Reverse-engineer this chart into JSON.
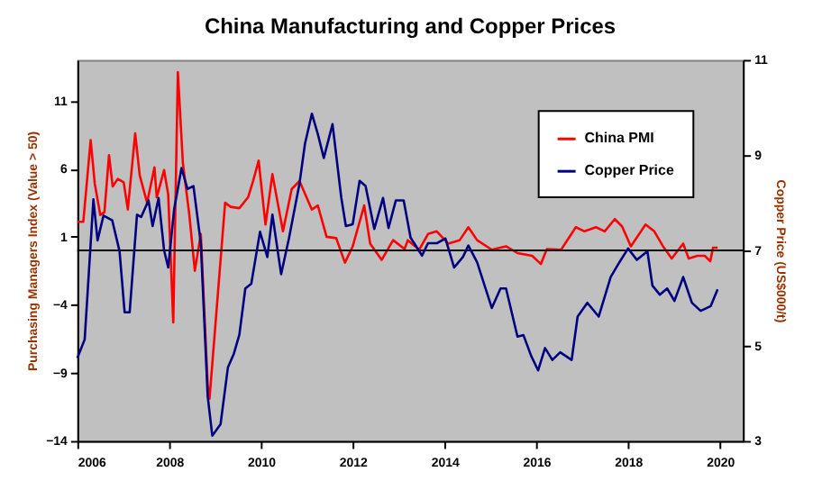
{
  "chart_data": {
    "type": "line",
    "title": "China Manufacturing and Copper Prices",
    "ylabel": "Purchasing Managers Index (Value > 50)",
    "y2label": "Copper Price (US$000/t)",
    "xlim": [
      2006,
      2020.5
    ],
    "xticks": [
      2006,
      2008,
      2010,
      2012,
      2014,
      2016,
      2018,
      2020
    ],
    "ylim": [
      -14,
      14
    ],
    "yticks": [
      -14,
      -9,
      -4,
      1,
      6,
      11
    ],
    "y2lim": [
      3,
      11
    ],
    "y2ticks": [
      3,
      5,
      7,
      9,
      11
    ],
    "grid": false,
    "legend": "top right",
    "marker": "none",
    "line_style": "solid",
    "ref_lines": [
      {
        "axis": "y",
        "value": 0,
        "color": "#000000",
        "line_style": "solid"
      }
    ],
    "series": [
      {
        "name": "China PMI",
        "color": "#ff0000",
        "axis": "y",
        "x": [
          2006.0,
          2006.13,
          2006.29,
          2006.38,
          2006.5,
          2006.59,
          2006.69,
          2006.77,
          2006.88,
          2007.01,
          2007.1,
          2007.26,
          2007.36,
          2007.52,
          2007.68,
          2007.73,
          2007.89,
          2007.98,
          2008.09,
          2008.19,
          2008.3,
          2008.44,
          2008.56,
          2008.69,
          2008.84,
          2008.88,
          2009.22,
          2009.34,
          2009.53,
          2009.72,
          2009.83,
          2009.95,
          2010.1,
          2010.25,
          2010.48,
          2010.67,
          2010.84,
          2011.11,
          2011.24,
          2011.43,
          2011.64,
          2011.83,
          2012.0,
          2012.25,
          2012.38,
          2012.63,
          2012.88,
          2013.13,
          2013.2,
          2013.45,
          2013.64,
          2013.83,
          2014.08,
          2014.33,
          2014.52,
          2014.71,
          2015.03,
          2015.34,
          2015.59,
          2015.91,
          2016.1,
          2016.23,
          2016.54,
          2016.86,
          2017.05,
          2017.3,
          2017.49,
          2017.71,
          2017.87,
          2018.06,
          2018.38,
          2018.57,
          2018.76,
          2018.95,
          2019.2,
          2019.32,
          2019.51,
          2019.67,
          2019.79,
          2019.85,
          2019.95
        ],
        "values": [
          2.1,
          2.1,
          8.1,
          4.9,
          2.6,
          2.8,
          7.0,
          4.7,
          5.25,
          5.0,
          3.0,
          8.6,
          5.5,
          3.5,
          6.1,
          3.9,
          5.9,
          4.1,
          -5.3,
          13.1,
          6.4,
          2.6,
          -1.5,
          1.2,
          -9.9,
          -10.9,
          3.5,
          3.2,
          3.1,
          3.9,
          5.1,
          6.6,
          1.9,
          5.6,
          1.4,
          4.5,
          5.1,
          3.0,
          3.3,
          1.0,
          0.9,
          -0.9,
          0.3,
          3.3,
          0.5,
          -0.7,
          0.75,
          0.1,
          0.75,
          0.05,
          1.2,
          1.4,
          0.5,
          0.75,
          1.7,
          0.75,
          0.05,
          0.3,
          -0.2,
          -0.4,
          -1.0,
          0.1,
          0.05,
          1.7,
          1.4,
          1.7,
          1.4,
          2.3,
          1.75,
          0.3,
          1.9,
          1.4,
          0.3,
          -0.6,
          0.5,
          -0.6,
          -0.4,
          -0.4,
          -0.8,
          0.2,
          0.2
        ]
      },
      {
        "name": "Copper Price",
        "color": "#000080",
        "axis": "y2",
        "x": [
          2006.0,
          2006.16,
          2006.35,
          2006.44,
          2006.57,
          2006.76,
          2006.92,
          2007.03,
          2007.14,
          2007.3,
          2007.39,
          2007.55,
          2007.64,
          2007.77,
          2007.89,
          2007.98,
          2008.11,
          2008.27,
          2008.4,
          2008.53,
          2008.69,
          2008.84,
          2008.94,
          2009.12,
          2009.28,
          2009.41,
          2009.53,
          2009.66,
          2009.79,
          2009.98,
          2010.14,
          2010.25,
          2010.44,
          2010.61,
          2010.84,
          2010.96,
          2011.11,
          2011.24,
          2011.37,
          2011.56,
          2011.75,
          2011.85,
          2012.0,
          2012.15,
          2012.28,
          2012.47,
          2012.66,
          2012.78,
          2012.94,
          2013.11,
          2013.26,
          2013.51,
          2013.64,
          2013.83,
          2014.02,
          2014.21,
          2014.4,
          2014.52,
          2014.71,
          2015.03,
          2015.22,
          2015.34,
          2015.59,
          2015.72,
          2015.89,
          2016.04,
          2016.19,
          2016.35,
          2016.52,
          2016.77,
          2016.9,
          2017.11,
          2017.36,
          2017.62,
          2017.81,
          2018.0,
          2018.19,
          2018.42,
          2018.53,
          2018.69,
          2018.85,
          2019.01,
          2019.2,
          2019.39,
          2019.58,
          2019.8,
          2019.95
        ],
        "values": [
          4.74,
          5.13,
          8.07,
          7.21,
          7.73,
          7.63,
          6.98,
          5.7,
          5.7,
          7.75,
          7.7,
          8.05,
          7.51,
          8.1,
          7.0,
          6.64,
          7.87,
          8.73,
          8.29,
          8.35,
          7.15,
          3.94,
          3.11,
          3.35,
          4.54,
          4.83,
          5.23,
          6.2,
          6.3,
          7.39,
          6.86,
          7.75,
          6.5,
          7.25,
          8.4,
          9.24,
          9.87,
          9.44,
          8.94,
          9.65,
          8.11,
          7.51,
          7.55,
          8.46,
          8.35,
          7.45,
          8.1,
          7.47,
          8.05,
          8.05,
          7.27,
          6.89,
          7.15,
          7.15,
          7.25,
          6.64,
          6.86,
          7.1,
          6.75,
          5.79,
          6.2,
          6.2,
          5.19,
          5.22,
          4.78,
          4.48,
          4.95,
          4.7,
          4.86,
          4.7,
          5.61,
          5.9,
          5.61,
          6.44,
          6.75,
          7.04,
          6.8,
          6.98,
          6.26,
          6.07,
          6.2,
          5.94,
          6.44,
          5.9,
          5.73,
          5.83,
          6.18
        ]
      }
    ]
  }
}
